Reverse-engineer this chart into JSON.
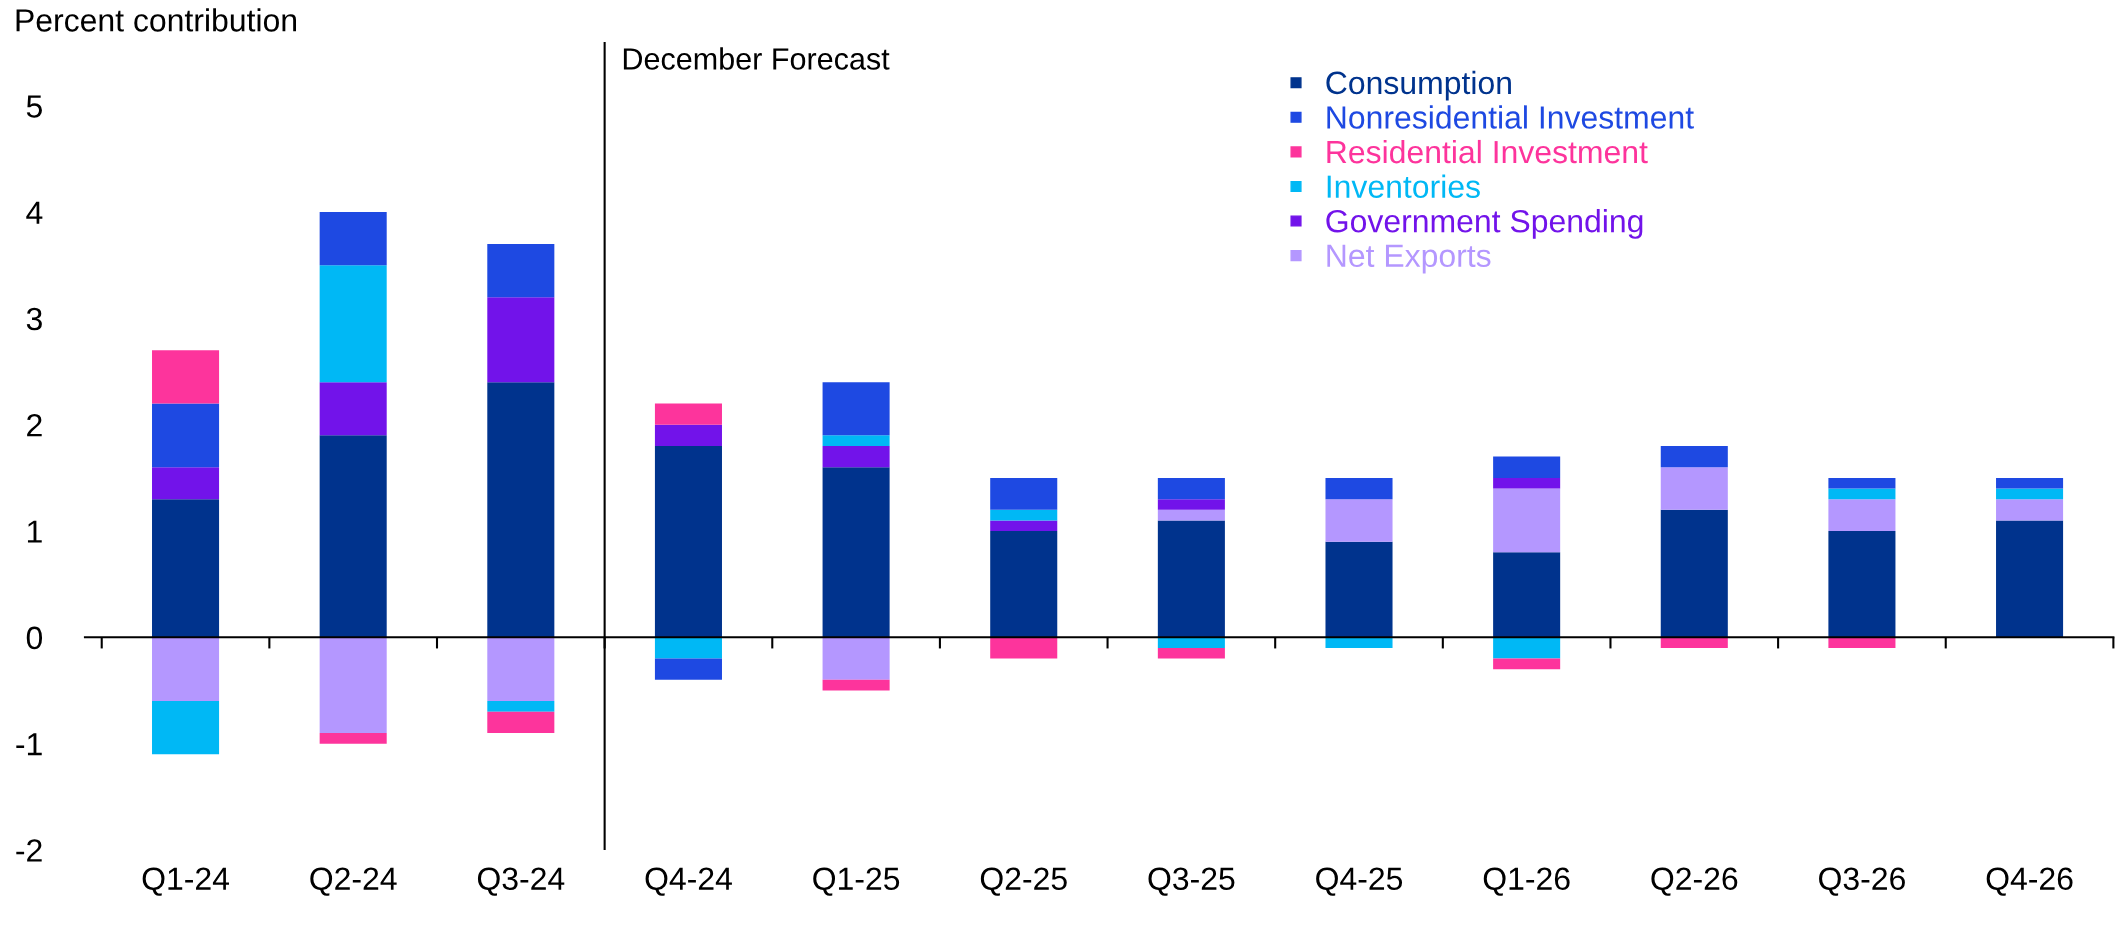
{
  "chart_data": {
    "type": "bar",
    "stacked": true,
    "ylabel": "Percent contribution",
    "categories": [
      "Q1-24",
      "Q2-24",
      "Q3-24",
      "Q4-24",
      "Q1-25",
      "Q2-25",
      "Q3-25",
      "Q4-25",
      "Q1-26",
      "Q2-26",
      "Q3-26",
      "Q4-26"
    ],
    "series": [
      {
        "name": "Consumption",
        "color": "#00338d",
        "values": [
          1.3,
          1.9,
          2.4,
          1.8,
          1.6,
          1.0,
          1.1,
          0.9,
          0.8,
          1.2,
          1.0,
          1.1
        ]
      },
      {
        "name": "Net Exports",
        "color": "#b497ff",
        "values": [
          -0.6,
          -0.9,
          -0.6,
          0,
          -0.4,
          0,
          0.1,
          0.4,
          0.6,
          0.4,
          0.3,
          0.2
        ]
      },
      {
        "name": "Government Spending",
        "color": "#7213ea",
        "values": [
          0.3,
          0.5,
          0.8,
          0.2,
          0.2,
          0.1,
          0.1,
          0,
          0.1,
          0,
          0,
          0
        ]
      },
      {
        "name": "Inventories",
        "color": "#00b8f5",
        "values": [
          -0.5,
          1.1,
          -0.1,
          -0.2,
          0.1,
          0.1,
          -0.1,
          -0.1,
          -0.2,
          0,
          0.1,
          0.1
        ]
      },
      {
        "name": "Nonresidential Investment",
        "color": "#1e49e2",
        "values": [
          0.6,
          0.5,
          0.5,
          -0.2,
          0.5,
          0.3,
          0.2,
          0.2,
          0.2,
          0.2,
          0.1,
          0.1
        ]
      },
      {
        "name": "Residential Investment",
        "color": "#fd349c",
        "values": [
          0.5,
          -0.1,
          -0.2,
          0.2,
          -0.1,
          -0.2,
          -0.1,
          0,
          -0.1,
          -0.1,
          -0.1,
          0
        ]
      }
    ],
    "ylim": [
      -2,
      5.6
    ],
    "yticks": [
      -2,
      -1,
      0,
      1,
      2,
      3,
      4,
      5
    ],
    "annotations": [
      "December Forecast"
    ],
    "legend": "top"
  }
}
